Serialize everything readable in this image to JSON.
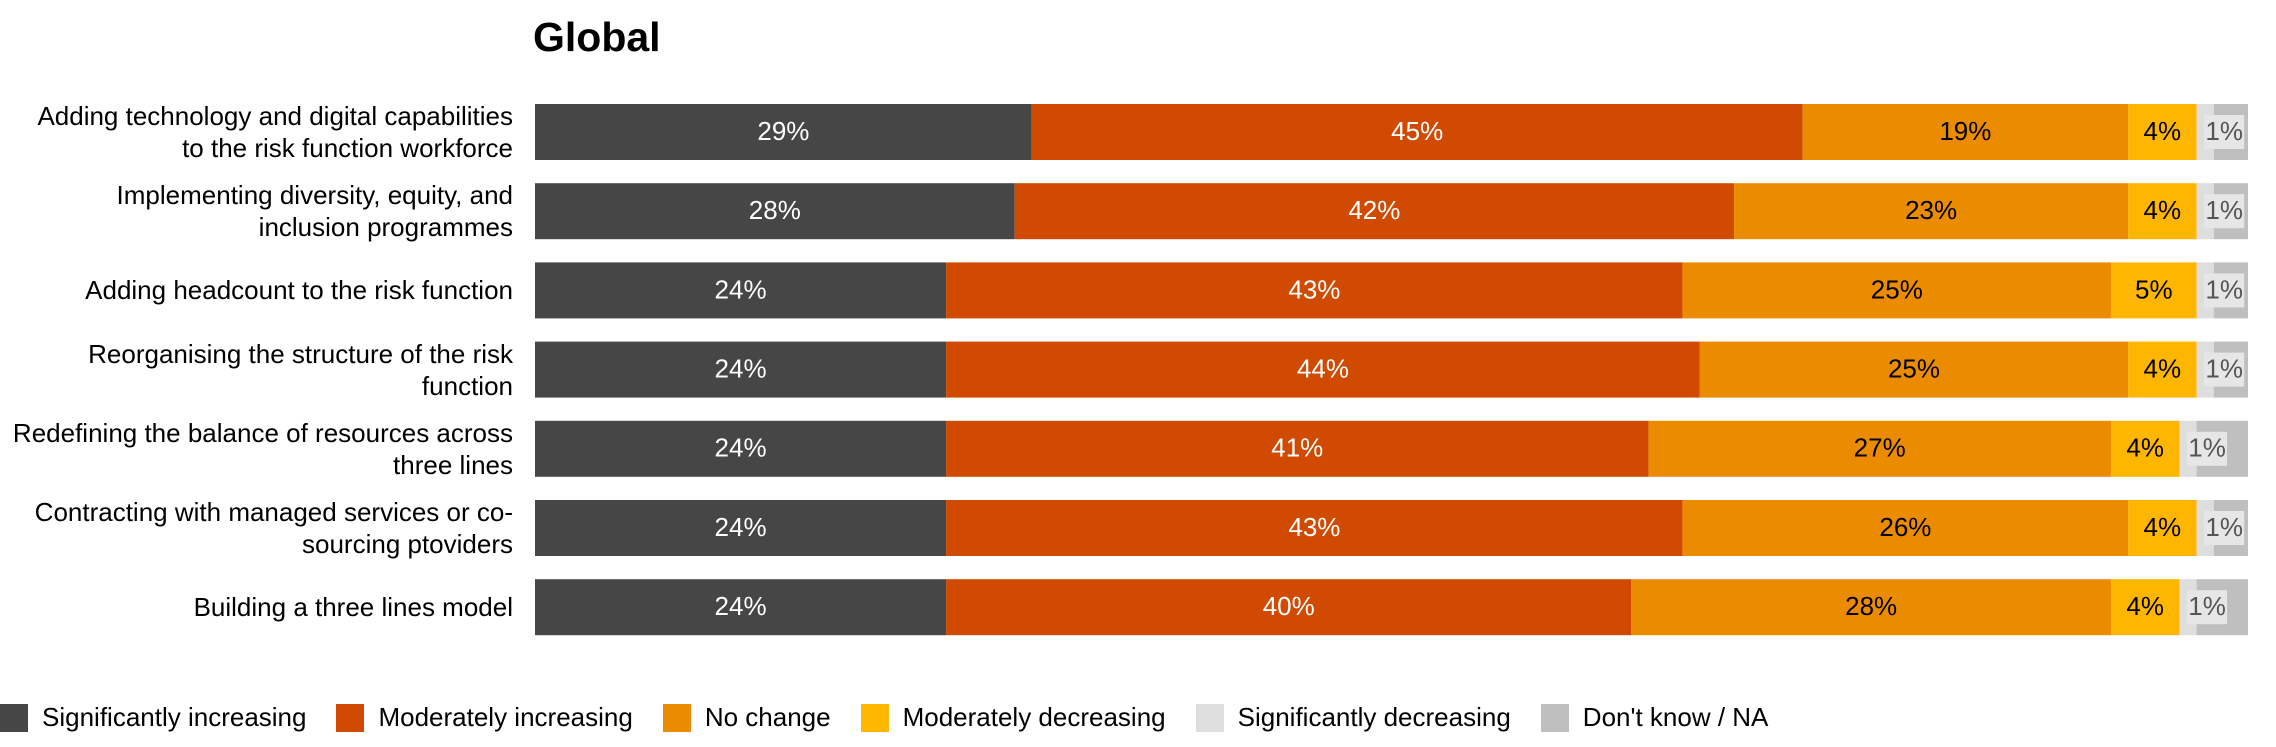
{
  "chart_data": {
    "type": "stacked-barh",
    "title": "Global",
    "categories": [
      "Adding technology and digital capabilities to the risk function workforce",
      "Implementing diversity, equity, and inclusion programmes",
      "Adding headcount to the risk function",
      "Reorganising the structure of the risk function",
      "Redefining the balance of resources across three lines",
      "Contracting with managed services or co-sourcing ptoviders",
      "Building a three lines model"
    ],
    "xlim": [
      0,
      100
    ],
    "series": [
      {
        "name": "Significantly increasing",
        "color": "#464646",
        "values": [
          29,
          28,
          24,
          24,
          24,
          24,
          24
        ],
        "value_labels": [
          "29%",
          "28%",
          "24%",
          "24%",
          "24%",
          "24%",
          "24%"
        ]
      },
      {
        "name": "Moderately increasing",
        "color": "#d04a02",
        "values": [
          45,
          42,
          43,
          44,
          41,
          43,
          40
        ],
        "value_labels": [
          "45%",
          "42%",
          "43%",
          "44%",
          "41%",
          "43%",
          "40%"
        ]
      },
      {
        "name": "No change",
        "color": "#eb8c00",
        "values": [
          19,
          23,
          25,
          25,
          27,
          26,
          28
        ],
        "value_labels": [
          "19%",
          "23%",
          "25%",
          "25%",
          "27%",
          "26%",
          "28%"
        ]
      },
      {
        "name": "Moderately decreasing",
        "color": "#ffb600",
        "values": [
          4,
          4,
          5,
          4,
          4,
          4,
          4
        ],
        "value_labels": [
          "4%",
          "4%",
          "5%",
          "4%",
          "4%",
          "4%",
          "4%"
        ]
      },
      {
        "name": "Significantly decreasing",
        "color": "#dedede",
        "values": [
          1,
          1,
          1,
          1,
          1,
          1,
          1
        ],
        "value_labels": [
          "1%",
          "1%",
          "1%",
          "1%",
          "1%",
          "1%",
          "1%"
        ]
      },
      {
        "name": "Don't know / NA",
        "color": "#bfbfbf",
        "values": [
          2,
          2,
          2,
          2,
          3,
          2,
          3
        ]
      }
    ]
  }
}
